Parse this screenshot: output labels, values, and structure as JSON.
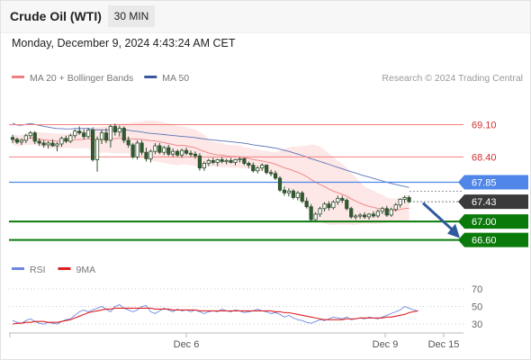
{
  "header": {
    "title": "Crude Oil (WTI)",
    "interval": "30 MIN"
  },
  "date_line": "Monday, December 9, 2024 4:43:24 AM CET",
  "credit": "Research © 2024 Trading Central",
  "colors": {
    "bollinger": "#f08080",
    "band_fill": "#fde3e3",
    "ma50": "#5b73b5",
    "resistance": "#f08080",
    "pivot": "#4f86e8",
    "support": "#0a7a0a",
    "price_tag": "#3a3a3a",
    "up_candle": "#ffffff",
    "down_candle": "#2f5b2f",
    "rsi": "#6d87e0",
    "rsi_ma": "#dd2020",
    "arrow": "#2f5a9c"
  },
  "chart_data": [
    {
      "type": "candlestick",
      "legend": [
        {
          "label": "MA 20 + Bollinger Bands",
          "color": "#f08080"
        },
        {
          "label": "MA 50",
          "color": "#3a5aa0"
        }
      ],
      "ylim": [
        66.3,
        69.85
      ],
      "x_ticks": [
        "Dec 6",
        "Dec 9",
        "Dec 15"
      ],
      "levels": [
        {
          "label": "69.10",
          "value": 69.1,
          "kind": "resistance"
        },
        {
          "label": "68.40",
          "value": 68.4,
          "kind": "resistance"
        },
        {
          "label": "67.85",
          "value": 67.85,
          "kind": "pivot"
        },
        {
          "label": "67.43",
          "value": 67.43,
          "kind": "last_price"
        },
        {
          "label": "67.00",
          "value": 67.0,
          "kind": "support"
        },
        {
          "label": "66.60",
          "value": 66.6,
          "kind": "support"
        }
      ],
      "forecast_arrow": {
        "from": 67.4,
        "to": 66.62
      },
      "candles": [
        [
          68.82,
          68.88,
          68.7,
          68.78
        ],
        [
          68.78,
          68.82,
          68.68,
          68.72
        ],
        [
          68.72,
          68.8,
          68.66,
          68.76
        ],
        [
          68.76,
          68.9,
          68.7,
          68.86
        ],
        [
          68.86,
          68.96,
          68.8,
          68.92
        ],
        [
          68.92,
          68.96,
          68.68,
          68.74
        ],
        [
          68.74,
          68.8,
          68.64,
          68.7
        ],
        [
          68.7,
          68.76,
          68.6,
          68.66
        ],
        [
          68.66,
          68.74,
          68.58,
          68.7
        ],
        [
          68.7,
          68.78,
          68.62,
          68.64
        ],
        [
          68.64,
          68.72,
          68.52,
          68.68
        ],
        [
          68.68,
          68.84,
          68.62,
          68.8
        ],
        [
          68.8,
          68.86,
          68.7,
          68.74
        ],
        [
          68.74,
          68.9,
          68.7,
          68.86
        ],
        [
          68.86,
          69.0,
          68.8,
          68.96
        ],
        [
          68.96,
          69.06,
          68.88,
          68.92
        ],
        [
          68.92,
          69.0,
          68.78,
          68.84
        ],
        [
          68.84,
          69.02,
          68.8,
          68.98
        ],
        [
          68.98,
          69.04,
          68.3,
          68.34
        ],
        [
          68.34,
          68.84,
          68.08,
          68.78
        ],
        [
          68.78,
          68.98,
          68.68,
          68.92
        ],
        [
          68.92,
          69.02,
          68.7,
          68.76
        ],
        [
          68.76,
          69.1,
          68.6,
          69.06
        ],
        [
          69.06,
          69.12,
          68.86,
          68.94
        ],
        [
          68.94,
          69.08,
          68.84,
          69.02
        ],
        [
          69.02,
          69.06,
          68.7,
          68.76
        ],
        [
          68.76,
          68.84,
          68.6,
          68.66
        ],
        [
          68.66,
          68.7,
          68.36,
          68.4
        ],
        [
          68.4,
          68.76,
          68.34,
          68.7
        ],
        [
          68.7,
          68.76,
          68.44,
          68.5
        ],
        [
          68.5,
          68.6,
          68.3,
          68.36
        ],
        [
          68.36,
          68.56,
          68.28,
          68.52
        ],
        [
          68.52,
          68.7,
          68.46,
          68.64
        ],
        [
          68.64,
          68.7,
          68.46,
          68.5
        ],
        [
          68.5,
          68.64,
          68.44,
          68.6
        ],
        [
          68.6,
          68.66,
          68.42,
          68.46
        ],
        [
          68.46,
          68.58,
          68.4,
          68.52
        ],
        [
          68.52,
          68.56,
          68.4,
          68.44
        ],
        [
          68.44,
          68.58,
          68.38,
          68.54
        ],
        [
          68.54,
          68.6,
          68.44,
          68.48
        ],
        [
          68.48,
          68.54,
          68.4,
          68.46
        ],
        [
          68.46,
          68.52,
          68.36,
          68.42
        ],
        [
          68.42,
          68.48,
          68.1,
          68.16
        ],
        [
          68.16,
          68.3,
          68.1,
          68.26
        ],
        [
          68.26,
          68.36,
          68.2,
          68.32
        ],
        [
          68.32,
          68.38,
          68.24,
          68.28
        ],
        [
          68.28,
          68.36,
          68.2,
          68.34
        ],
        [
          68.34,
          68.4,
          68.26,
          68.3
        ],
        [
          68.3,
          68.36,
          68.24,
          68.32
        ],
        [
          68.32,
          68.38,
          68.26,
          68.28
        ],
        [
          68.28,
          68.36,
          68.22,
          68.34
        ],
        [
          68.34,
          68.4,
          68.28,
          68.36
        ],
        [
          68.36,
          68.38,
          68.22,
          68.26
        ],
        [
          68.26,
          68.3,
          68.16,
          68.22
        ],
        [
          68.22,
          68.28,
          68.06,
          68.1
        ],
        [
          68.1,
          68.2,
          68.04,
          68.16
        ],
        [
          68.16,
          68.26,
          68.1,
          68.22
        ],
        [
          68.22,
          68.24,
          68.02,
          68.06
        ],
        [
          68.06,
          68.12,
          67.98,
          68.04
        ],
        [
          68.04,
          68.1,
          67.9,
          67.94
        ],
        [
          67.94,
          67.98,
          67.64,
          67.68
        ],
        [
          67.68,
          67.76,
          67.56,
          67.62
        ],
        [
          67.62,
          67.72,
          67.54,
          67.66
        ],
        [
          67.66,
          67.7,
          67.48,
          67.52
        ],
        [
          67.52,
          67.66,
          67.46,
          67.62
        ],
        [
          67.62,
          67.66,
          67.4,
          67.44
        ],
        [
          67.44,
          67.52,
          67.28,
          67.32
        ],
        [
          67.32,
          67.38,
          67.0,
          67.04
        ],
        [
          67.04,
          67.2,
          67.0,
          67.16
        ],
        [
          67.16,
          67.32,
          67.1,
          67.28
        ],
        [
          67.28,
          67.42,
          67.22,
          67.38
        ],
        [
          67.38,
          67.44,
          67.24,
          67.3
        ],
        [
          67.3,
          67.46,
          67.26,
          67.42
        ],
        [
          67.42,
          67.56,
          67.36,
          67.5
        ],
        [
          67.5,
          67.56,
          67.4,
          67.46
        ],
        [
          67.46,
          67.5,
          67.24,
          67.28
        ],
        [
          67.28,
          67.32,
          67.06,
          67.1
        ],
        [
          67.1,
          67.16,
          67.04,
          67.12
        ],
        [
          67.12,
          67.18,
          67.06,
          67.14
        ],
        [
          67.14,
          67.2,
          67.06,
          67.1
        ],
        [
          67.1,
          67.18,
          67.04,
          67.16
        ],
        [
          67.16,
          67.22,
          67.08,
          67.12
        ],
        [
          67.12,
          67.26,
          67.08,
          67.22
        ],
        [
          67.22,
          67.32,
          67.16,
          67.28
        ],
        [
          67.28,
          67.34,
          67.1,
          67.14
        ],
        [
          67.14,
          67.3,
          67.1,
          67.26
        ],
        [
          67.26,
          67.4,
          67.22,
          67.36
        ],
        [
          67.36,
          67.5,
          67.3,
          67.48
        ],
        [
          67.48,
          67.56,
          67.4,
          67.52
        ],
        [
          67.52,
          67.56,
          67.4,
          67.43
        ]
      ]
    },
    {
      "type": "line",
      "legend": [
        {
          "label": "RSI",
          "color": "#6d87e0"
        },
        {
          "label": "9MA",
          "color": "#dd2020"
        }
      ],
      "ylim": [
        22,
        78
      ],
      "y_ticks": [
        "70",
        "50",
        "30"
      ],
      "series": [
        {
          "name": "RSI",
          "values": [
            34,
            32,
            31,
            34,
            36,
            33,
            31,
            30,
            32,
            31,
            30,
            33,
            35,
            36,
            40,
            44,
            46,
            44,
            46,
            48,
            50,
            47,
            44,
            50,
            52,
            48,
            46,
            44,
            46,
            50,
            51,
            44,
            42,
            45,
            48,
            46,
            44,
            47,
            45,
            46,
            44,
            46,
            44,
            42,
            44,
            45,
            44,
            47,
            45,
            44,
            46,
            45,
            43,
            44,
            45,
            47,
            45,
            44,
            42,
            43,
            41,
            38,
            40,
            37,
            35,
            34,
            32,
            31,
            33,
            35,
            34,
            36,
            38,
            37,
            36,
            38,
            35,
            36,
            37,
            36,
            38,
            37,
            36,
            38,
            40,
            42,
            44,
            46,
            50,
            48,
            46,
            45
          ]
        },
        {
          "name": "9MA",
          "values": [
            30,
            31,
            31,
            32,
            32,
            33,
            33,
            33,
            32,
            32,
            32,
            33,
            34,
            35,
            37,
            39,
            41,
            43,
            44,
            45,
            46,
            47,
            47,
            48,
            48,
            48,
            48,
            48,
            48,
            48,
            48,
            48,
            47,
            47,
            47,
            47,
            46,
            46,
            46,
            46,
            46,
            46,
            45,
            45,
            45,
            45,
            45,
            45,
            45,
            45,
            45,
            45,
            45,
            45,
            45,
            45,
            45,
            45,
            45,
            44,
            44,
            43,
            43,
            42,
            41,
            40,
            39,
            38,
            37,
            36,
            35,
            35,
            35,
            35,
            35,
            36,
            36,
            36,
            37,
            37,
            37,
            37,
            37,
            37,
            38,
            38,
            39,
            40,
            41,
            43,
            44,
            45
          ]
        }
      ]
    }
  ]
}
